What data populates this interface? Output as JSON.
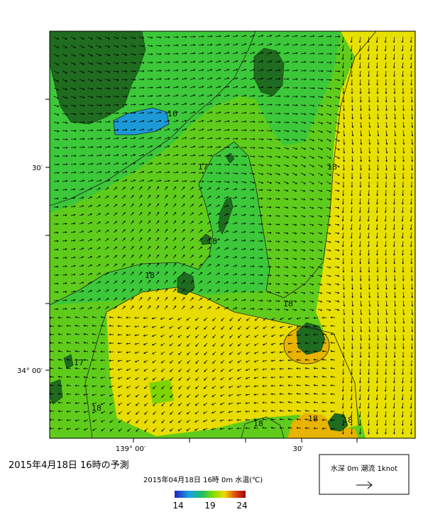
{
  "map": {
    "lat_labels": [
      "30′",
      "34° 00′"
    ],
    "lon_labels": [
      "139° 00′",
      "30′"
    ],
    "contour_labels": [
      16,
      17,
      18,
      18,
      18,
      18,
      17,
      18,
      18,
      18,
      18
    ]
  },
  "title": "2015年4月18日  16時の予測",
  "subtitle": "2015年04月18日 16時 0m 水温(℃)",
  "colorbar": {
    "ticks": [
      14,
      19,
      24
    ]
  },
  "legend": {
    "text": "水深 0m 潮流 1knot"
  }
}
